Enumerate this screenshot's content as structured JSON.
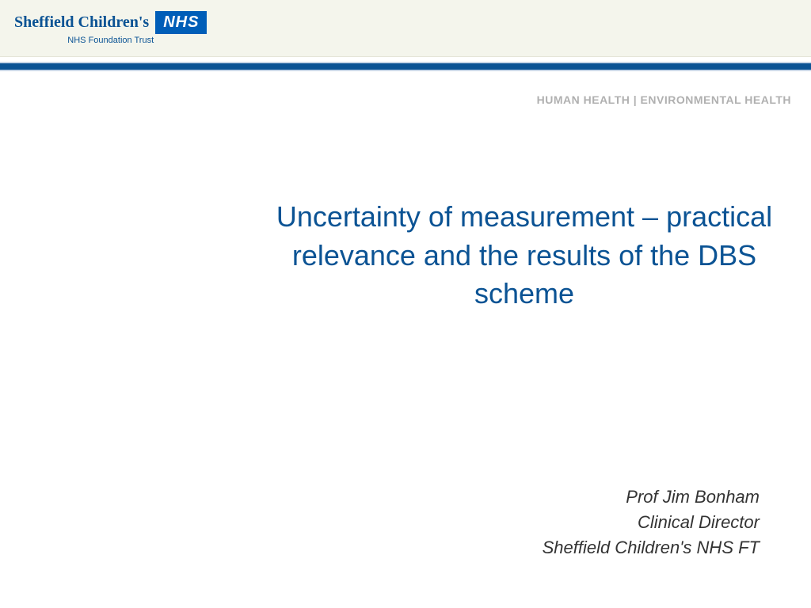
{
  "header": {
    "logo_main": "Sheffield Children's",
    "logo_badge": "NHS",
    "logo_sub": "NHS Foundation Trust"
  },
  "tagline": "HUMAN HEALTH | ENVIRONMENTAL HEALTH",
  "title": "Uncertainty of measurement – practical relevance and the results of the DBS scheme",
  "author": {
    "name": "Prof Jim Bonham",
    "role": "Clinical Director",
    "org": "Sheffield Children's NHS FT"
  },
  "colors": {
    "brand_blue": "#0b5394",
    "nhs_blue": "#005eb8",
    "header_bg": "#f4f5ec",
    "tagline_grey": "#b0b0b0",
    "body_text": "#333333"
  }
}
